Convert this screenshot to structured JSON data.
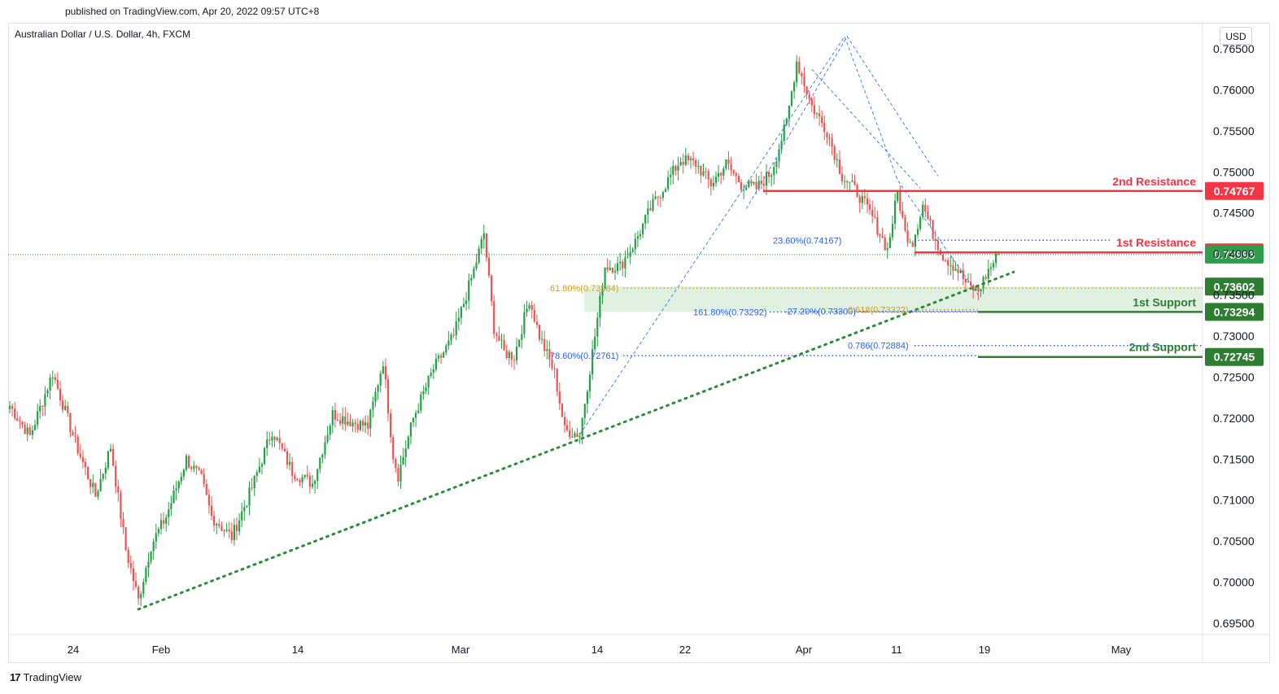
{
  "header": {
    "published": "published on TradingView.com, Apr 20, 2022 09:57 UTC+8",
    "symbol": "Australian Dollar / U.S. Dollar, 4h, FXCM",
    "currency": "USD"
  },
  "footer": {
    "brand": "TradingView",
    "brand_mark": "17"
  },
  "colors": {
    "up": "#26a046",
    "down": "#ef5350",
    "resistance": "#f23645",
    "support": "#2e7d32",
    "fib_blue": "#2962ff",
    "fib_gold": "#d4a017",
    "zone": "#c8e6c9",
    "last_price": "#2e9e4a"
  },
  "chart_data": {
    "type": "candlestick",
    "title": "Australian Dollar / U.S. Dollar, 4h, FXCM",
    "ylabel": "USD",
    "ylim": [
      0.6925,
      0.7675
    ],
    "y_ticks": [
      "0.69500",
      "0.70000",
      "0.70500",
      "0.71000",
      "0.71500",
      "0.72000",
      "0.72500",
      "0.73000",
      "0.73500",
      "0.74000",
      "0.74500",
      "0.75000",
      "0.75500",
      "0.76000",
      "0.76500"
    ],
    "x_ticks": [
      "24",
      "Feb",
      "14",
      "Mar",
      "14",
      "22",
      "Apr",
      "11",
      "19",
      "May"
    ],
    "anchors": [
      {
        "t": 0,
        "p": 0.7215
      },
      {
        "t": 8,
        "p": 0.7178
      },
      {
        "t": 17,
        "p": 0.7255
      },
      {
        "t": 26,
        "p": 0.717
      },
      {
        "t": 34,
        "p": 0.7105
      },
      {
        "t": 40,
        "p": 0.7165
      },
      {
        "t": 46,
        "p": 0.704
      },
      {
        "t": 51,
        "p": 0.6978
      },
      {
        "t": 56,
        "p": 0.7045
      },
      {
        "t": 62,
        "p": 0.708
      },
      {
        "t": 70,
        "p": 0.715
      },
      {
        "t": 76,
        "p": 0.7125
      },
      {
        "t": 80,
        "p": 0.708
      },
      {
        "t": 88,
        "p": 0.7055
      },
      {
        "t": 96,
        "p": 0.7115
      },
      {
        "t": 104,
        "p": 0.7185
      },
      {
        "t": 112,
        "p": 0.7135
      },
      {
        "t": 120,
        "p": 0.712
      },
      {
        "t": 128,
        "p": 0.7205
      },
      {
        "t": 136,
        "p": 0.7195
      },
      {
        "t": 142,
        "p": 0.719
      },
      {
        "t": 148,
        "p": 0.727
      },
      {
        "t": 152,
        "p": 0.7155
      },
      {
        "t": 154,
        "p": 0.713
      },
      {
        "t": 160,
        "p": 0.72
      },
      {
        "t": 168,
        "p": 0.726
      },
      {
        "t": 176,
        "p": 0.73
      },
      {
        "t": 184,
        "p": 0.738
      },
      {
        "t": 188,
        "p": 0.7425
      },
      {
        "t": 192,
        "p": 0.731
      },
      {
        "t": 196,
        "p": 0.728
      },
      {
        "t": 200,
        "p": 0.7275
      },
      {
        "t": 206,
        "p": 0.7345
      },
      {
        "t": 210,
        "p": 0.73
      },
      {
        "t": 216,
        "p": 0.7255
      },
      {
        "t": 220,
        "p": 0.7185
      },
      {
        "t": 226,
        "p": 0.718
      },
      {
        "t": 232,
        "p": 0.73
      },
      {
        "t": 236,
        "p": 0.7385
      },
      {
        "t": 242,
        "p": 0.7385
      },
      {
        "t": 248,
        "p": 0.7415
      },
      {
        "t": 254,
        "p": 0.7455
      },
      {
        "t": 260,
        "p": 0.7485
      },
      {
        "t": 266,
        "p": 0.7515
      },
      {
        "t": 272,
        "p": 0.751
      },
      {
        "t": 278,
        "p": 0.7485
      },
      {
        "t": 284,
        "p": 0.751
      },
      {
        "t": 290,
        "p": 0.7485
      },
      {
        "t": 296,
        "p": 0.748
      },
      {
        "t": 302,
        "p": 0.75
      },
      {
        "t": 308,
        "p": 0.756
      },
      {
        "t": 312,
        "p": 0.7635
      },
      {
        "t": 318,
        "p": 0.758
      },
      {
        "t": 324,
        "p": 0.755
      },
      {
        "t": 330,
        "p": 0.7495
      },
      {
        "t": 336,
        "p": 0.7475
      },
      {
        "t": 342,
        "p": 0.7445
      },
      {
        "t": 348,
        "p": 0.7405
      },
      {
        "t": 352,
        "p": 0.7475
      },
      {
        "t": 355,
        "p": 0.7425
      },
      {
        "t": 358,
        "p": 0.7415
      },
      {
        "t": 362,
        "p": 0.746
      },
      {
        "t": 366,
        "p": 0.7425
      },
      {
        "t": 370,
        "p": 0.7398
      },
      {
        "t": 376,
        "p": 0.738
      },
      {
        "t": 380,
        "p": 0.736
      },
      {
        "t": 384,
        "p": 0.7355
      },
      {
        "t": 388,
        "p": 0.738
      },
      {
        "t": 392,
        "p": 0.7399
      }
    ],
    "horizontal_levels": [
      {
        "name": "2nd Resistance",
        "price": 0.74767,
        "label": "0.74767",
        "kind": "resistance"
      },
      {
        "name": "1st Resistance",
        "price": 0.74019,
        "label": "0.74019",
        "kind": "resistance"
      },
      {
        "name": "1st Support",
        "price": 0.73294,
        "label": "0.73294",
        "kind": "support"
      },
      {
        "name": "2nd Support",
        "price": 0.72745,
        "label": "0.72745",
        "kind": "support"
      }
    ],
    "level_names": {
      "r2": "2nd Resistance",
      "r1": "1st Resistance",
      "s1": "1st Support",
      "s2": "2nd Support"
    },
    "axis_price_labels": [
      {
        "price": 0.73993,
        "label": "0.73993",
        "kind": "last"
      },
      {
        "price": 0.73602,
        "label": "0.73602",
        "kind": "support"
      }
    ],
    "fib_labels": [
      {
        "text": "23.60%(0.74167)",
        "price": 0.74167,
        "color": "blue"
      },
      {
        "text": "61.80%(0.73584)",
        "price": 0.73584,
        "color": "gold"
      },
      {
        "text": "161.80%(0.73292)",
        "price": 0.73292,
        "color": "blue"
      },
      {
        "text": "-27.20%(0.73300)",
        "price": 0.733,
        "color": "blue"
      },
      {
        "text": "0.618(0.73322)",
        "price": 0.73322,
        "color": "gold"
      },
      {
        "text": "0.786(0.72884)",
        "price": 0.72884,
        "color": "blue"
      },
      {
        "text": "78.60%(0.72761)",
        "price": 0.72761,
        "color": "blue"
      }
    ],
    "trendline": {
      "start": {
        "t": 51,
        "p": 0.6967
      },
      "end": {
        "t": 398,
        "p": 0.7378
      }
    },
    "support_zone": [
      0.73294,
      0.73602
    ],
    "last_price": 0.73993
  }
}
